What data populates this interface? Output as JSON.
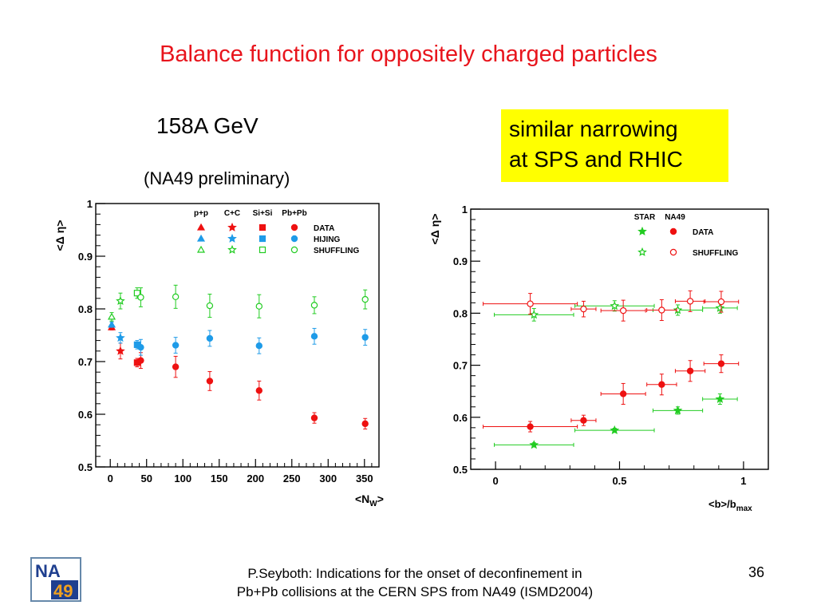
{
  "slide": {
    "title": "Balance function for oppositely charged particles",
    "energy": "158A GeV",
    "preliminary": "(NA49 preliminary)",
    "callout": [
      "similar narrowing",
      "at SPS and RHIC"
    ],
    "footer": [
      "P.Seyboth: Indications for the onset of deconfinement in",
      "Pb+Pb collisions at the CERN SPS from NA49   (ISMD2004)"
    ],
    "page_number": "36",
    "logo_text": [
      "NA",
      "49"
    ]
  },
  "colors": {
    "red": "#ee1111",
    "blue": "#1e9be8",
    "green": "#22cc22",
    "title": "#e8141c",
    "callout_bg": "#ffff00"
  },
  "chart_data": [
    {
      "type": "scatter",
      "xlabel": "<N_W>",
      "ylabel": "<Δ η>",
      "xlim": [
        -20,
        370
      ],
      "ylim": [
        0.5,
        1.0
      ],
      "xticks": [
        0,
        50,
        100,
        150,
        200,
        250,
        300,
        350
      ],
      "yticks": [
        0.5,
        0.6,
        0.7,
        0.8,
        0.9,
        1
      ],
      "ytick_labels": [
        "0.5",
        "0.6",
        "0.7",
        "0.8",
        "0.9",
        "1"
      ],
      "legend": {
        "columns": [
          "p+p",
          "C+C",
          "Si+Si",
          "Pb+Pb"
        ],
        "rows": [
          "DATA",
          "HIJING",
          "SHUFFLING"
        ],
        "placement": "top-right"
      },
      "series": [
        {
          "name": "DATA",
          "color": "red",
          "points": [
            {
              "x": 2,
              "y": 0.765,
              "err": 0.005,
              "marker": "triangle"
            },
            {
              "x": 14,
              "y": 0.72,
              "err": 0.015,
              "marker": "star"
            },
            {
              "x": 37,
              "y": 0.698,
              "err": 0.008,
              "marker": "square"
            },
            {
              "x": 42,
              "y": 0.702,
              "err": 0.015,
              "marker": "circle"
            },
            {
              "x": 90,
              "y": 0.69,
              "err": 0.02,
              "marker": "circle"
            },
            {
              "x": 137,
              "y": 0.663,
              "err": 0.018,
              "marker": "circle"
            },
            {
              "x": 205,
              "y": 0.645,
              "err": 0.018,
              "marker": "circle"
            },
            {
              "x": 281,
              "y": 0.593,
              "err": 0.01,
              "marker": "circle"
            },
            {
              "x": 351,
              "y": 0.582,
              "err": 0.01,
              "marker": "circle"
            }
          ]
        },
        {
          "name": "HIJING",
          "color": "blue",
          "points": [
            {
              "x": 2,
              "y": 0.77,
              "err": 0.005,
              "marker": "triangle"
            },
            {
              "x": 14,
              "y": 0.745,
              "err": 0.01,
              "marker": "star"
            },
            {
              "x": 37,
              "y": 0.732,
              "err": 0.008,
              "marker": "square"
            },
            {
              "x": 42,
              "y": 0.727,
              "err": 0.015,
              "marker": "circle"
            },
            {
              "x": 90,
              "y": 0.731,
              "err": 0.015,
              "marker": "circle"
            },
            {
              "x": 137,
              "y": 0.744,
              "err": 0.015,
              "marker": "circle"
            },
            {
              "x": 205,
              "y": 0.73,
              "err": 0.015,
              "marker": "circle"
            },
            {
              "x": 281,
              "y": 0.748,
              "err": 0.015,
              "marker": "circle"
            },
            {
              "x": 351,
              "y": 0.746,
              "err": 0.015,
              "marker": "circle"
            }
          ]
        },
        {
          "name": "SHUFFLING",
          "color": "green",
          "points": [
            {
              "x": 2,
              "y": 0.785,
              "err": 0.008,
              "marker": "triangle"
            },
            {
              "x": 14,
              "y": 0.815,
              "err": 0.015,
              "marker": "star"
            },
            {
              "x": 37,
              "y": 0.83,
              "err": 0.01,
              "marker": "square"
            },
            {
              "x": 42,
              "y": 0.822,
              "err": 0.018,
              "marker": "circle"
            },
            {
              "x": 90,
              "y": 0.823,
              "err": 0.022,
              "marker": "circle"
            },
            {
              "x": 137,
              "y": 0.806,
              "err": 0.022,
              "marker": "circle"
            },
            {
              "x": 205,
              "y": 0.805,
              "err": 0.022,
              "marker": "circle"
            },
            {
              "x": 281,
              "y": 0.807,
              "err": 0.016,
              "marker": "circle"
            },
            {
              "x": 351,
              "y": 0.818,
              "err": 0.018,
              "marker": "circle"
            }
          ]
        }
      ]
    },
    {
      "type": "scatter",
      "xlabel": "<b>/b_max",
      "ylabel": "<Δ η>",
      "xlim": [
        -0.1,
        1.1
      ],
      "ylim": [
        0.5,
        1.0
      ],
      "xticks": [
        0,
        0.5,
        1
      ],
      "xtick_labels": [
        "0",
        "0.5",
        "1"
      ],
      "yticks": [
        0.5,
        0.6,
        0.7,
        0.8,
        0.9,
        1
      ],
      "ytick_labels": [
        "0.5",
        "0.6",
        "0.7",
        "0.8",
        "0.9",
        "1"
      ],
      "legend": {
        "columns": [
          "STAR",
          "NA49"
        ],
        "rows": [
          "DATA",
          "SHUFFLING"
        ],
        "placement": "top-right"
      },
      "series": [
        {
          "name": "STAR DATA",
          "color": "green",
          "marker": "star",
          "open": false,
          "points": [
            {
              "x": 0.155,
              "y": 0.547,
              "xerr": 0.16,
              "yerr": 0.004
            },
            {
              "x": 0.48,
              "y": 0.575,
              "xerr": 0.16,
              "yerr": 0.004
            },
            {
              "x": 0.735,
              "y": 0.613,
              "xerr": 0.1,
              "yerr": 0.007
            },
            {
              "x": 0.905,
              "y": 0.635,
              "xerr": 0.07,
              "yerr": 0.01
            }
          ]
        },
        {
          "name": "NA49 DATA",
          "color": "red",
          "marker": "circle",
          "open": false,
          "points": [
            {
              "x": 0.14,
              "y": 0.582,
              "xerr": 0.19,
              "yerr": 0.01
            },
            {
              "x": 0.355,
              "y": 0.594,
              "xerr": 0.05,
              "yerr": 0.01
            },
            {
              "x": 0.515,
              "y": 0.645,
              "xerr": 0.09,
              "yerr": 0.02
            },
            {
              "x": 0.67,
              "y": 0.663,
              "xerr": 0.06,
              "yerr": 0.02
            },
            {
              "x": 0.785,
              "y": 0.689,
              "xerr": 0.06,
              "yerr": 0.02
            },
            {
              "x": 0.91,
              "y": 0.703,
              "xerr": 0.07,
              "yerr": 0.017
            }
          ]
        },
        {
          "name": "STAR SHUFFLING",
          "color": "green",
          "marker": "star",
          "open": true,
          "points": [
            {
              "x": 0.155,
              "y": 0.797,
              "xerr": 0.16,
              "yerr": 0.012
            },
            {
              "x": 0.48,
              "y": 0.814,
              "xerr": 0.16,
              "yerr": 0.01
            },
            {
              "x": 0.735,
              "y": 0.806,
              "xerr": 0.1,
              "yerr": 0.01
            },
            {
              "x": 0.905,
              "y": 0.81,
              "xerr": 0.07,
              "yerr": 0.01
            }
          ]
        },
        {
          "name": "NA49 SHUFFLING",
          "color": "red",
          "marker": "circle",
          "open": true,
          "points": [
            {
              "x": 0.14,
              "y": 0.818,
              "xerr": 0.19,
              "yerr": 0.02
            },
            {
              "x": 0.355,
              "y": 0.808,
              "xerr": 0.05,
              "yerr": 0.015
            },
            {
              "x": 0.515,
              "y": 0.805,
              "xerr": 0.09,
              "yerr": 0.02
            },
            {
              "x": 0.67,
              "y": 0.806,
              "xerr": 0.06,
              "yerr": 0.02
            },
            {
              "x": 0.785,
              "y": 0.823,
              "xerr": 0.06,
              "yerr": 0.02
            },
            {
              "x": 0.91,
              "y": 0.822,
              "xerr": 0.07,
              "yerr": 0.02
            }
          ]
        }
      ]
    }
  ]
}
